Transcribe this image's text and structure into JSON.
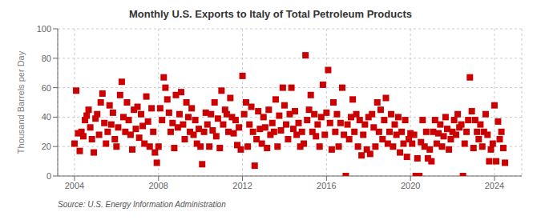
{
  "chart_data": {
    "type": "scatter",
    "title": "Monthly U.S. Exports to Italy of Total Petroleum Products",
    "y_label": "Thousand Barrels per Day",
    "annotation": "Source: U.S. Energy Information Administration",
    "color": "#cc0000",
    "marker": "square",
    "grid": true,
    "xlim": [
      2003.2,
      2025.3
    ],
    "ylim": [
      0,
      100
    ],
    "xticks": [
      2004,
      2008,
      2012,
      2016,
      2020,
      2024
    ],
    "yticks": [
      0,
      20,
      40,
      60,
      80,
      100
    ],
    "x": [
      2004.0,
      2004.08,
      2004.17,
      2004.25,
      2004.33,
      2004.42,
      2004.5,
      2004.58,
      2004.67,
      2004.75,
      2004.83,
      2004.92,
      2005.0,
      2005.08,
      2005.17,
      2005.25,
      2005.33,
      2005.42,
      2005.5,
      2005.58,
      2005.67,
      2005.75,
      2005.83,
      2005.92,
      2006.0,
      2006.08,
      2006.17,
      2006.25,
      2006.33,
      2006.42,
      2006.5,
      2006.58,
      2006.67,
      2006.75,
      2006.83,
      2006.92,
      2007.0,
      2007.08,
      2007.17,
      2007.25,
      2007.33,
      2007.42,
      2007.5,
      2007.58,
      2007.67,
      2007.75,
      2007.83,
      2007.92,
      2008.0,
      2008.08,
      2008.17,
      2008.25,
      2008.33,
      2008.42,
      2008.5,
      2008.58,
      2008.67,
      2008.75,
      2008.83,
      2008.92,
      2009.0,
      2009.08,
      2009.17,
      2009.25,
      2009.33,
      2009.42,
      2009.5,
      2009.58,
      2009.67,
      2009.75,
      2009.83,
      2009.92,
      2010.0,
      2010.08,
      2010.17,
      2010.25,
      2010.33,
      2010.42,
      2010.5,
      2010.58,
      2010.67,
      2010.75,
      2010.83,
      2010.92,
      2011.0,
      2011.08,
      2011.17,
      2011.25,
      2011.33,
      2011.42,
      2011.5,
      2011.58,
      2011.67,
      2011.75,
      2011.83,
      2011.92,
      2012.0,
      2012.08,
      2012.17,
      2012.25,
      2012.33,
      2012.42,
      2012.5,
      2012.58,
      2012.67,
      2012.75,
      2012.83,
      2012.92,
      2013.0,
      2013.08,
      2013.17,
      2013.25,
      2013.33,
      2013.42,
      2013.5,
      2013.58,
      2013.67,
      2013.75,
      2013.83,
      2013.92,
      2014.0,
      2014.08,
      2014.17,
      2014.25,
      2014.33,
      2014.42,
      2014.5,
      2014.58,
      2014.67,
      2014.75,
      2014.83,
      2014.92,
      2015.0,
      2015.08,
      2015.17,
      2015.25,
      2015.33,
      2015.42,
      2015.5,
      2015.58,
      2015.67,
      2015.75,
      2015.83,
      2015.92,
      2016.0,
      2016.08,
      2016.17,
      2016.25,
      2016.33,
      2016.42,
      2016.5,
      2016.58,
      2016.67,
      2016.75,
      2016.83,
      2016.92,
      2017.0,
      2017.08,
      2017.17,
      2017.25,
      2017.33,
      2017.42,
      2017.5,
      2017.58,
      2017.67,
      2017.75,
      2017.83,
      2017.92,
      2018.0,
      2018.08,
      2018.17,
      2018.25,
      2018.33,
      2018.42,
      2018.5,
      2018.58,
      2018.67,
      2018.75,
      2018.83,
      2018.92,
      2019.0,
      2019.08,
      2019.17,
      2019.25,
      2019.33,
      2019.42,
      2019.5,
      2019.58,
      2019.67,
      2019.75,
      2019.83,
      2019.92,
      2020.0,
      2020.08,
      2020.17,
      2020.25,
      2020.33,
      2020.42,
      2020.5,
      2020.58,
      2020.67,
      2020.75,
      2020.83,
      2020.92,
      2021.0,
      2021.08,
      2021.17,
      2021.25,
      2021.33,
      2021.42,
      2021.5,
      2021.58,
      2021.67,
      2021.75,
      2021.83,
      2021.92,
      2022.0,
      2022.08,
      2022.17,
      2022.25,
      2022.33,
      2022.42,
      2022.5,
      2022.58,
      2022.67,
      2022.75,
      2022.83,
      2022.92,
      2023.0,
      2023.08,
      2023.17,
      2023.25,
      2023.33,
      2023.42,
      2023.5,
      2023.58,
      2023.67,
      2023.75,
      2023.83,
      2023.92,
      2024.0,
      2024.08,
      2024.17,
      2024.25,
      2024.33,
      2024.42,
      2024.5
    ],
    "values": [
      22,
      58,
      29,
      17,
      30,
      27,
      38,
      41,
      45,
      33,
      25,
      16,
      39,
      42,
      28,
      50,
      56,
      36,
      22,
      30,
      48,
      35,
      43,
      25,
      20,
      33,
      55,
      64,
      40,
      30,
      50,
      38,
      28,
      18,
      45,
      32,
      47,
      26,
      42,
      34,
      22,
      54,
      37,
      20,
      46,
      30,
      16,
      9,
      20,
      46,
      38,
      67,
      60,
      52,
      43,
      30,
      36,
      19,
      55,
      33,
      42,
      57,
      35,
      25,
      50,
      40,
      30,
      46,
      28,
      38,
      22,
      32,
      20,
      8,
      30,
      43,
      35,
      20,
      42,
      31,
      50,
      27,
      39,
      19,
      58,
      35,
      45,
      42,
      30,
      53,
      40,
      29,
      38,
      21,
      33,
      18,
      68,
      42,
      50,
      20,
      35,
      47,
      30,
      7,
      25,
      44,
      32,
      22,
      40,
      33,
      19,
      45,
      28,
      36,
      30,
      52,
      20,
      41,
      31,
      60,
      48,
      35,
      25,
      42,
      60,
      32,
      44,
      28,
      36,
      20,
      30,
      22,
      82,
      38,
      45,
      55,
      30,
      42,
      27,
      35,
      20,
      40,
      62,
      28,
      43,
      72,
      36,
      18,
      50,
      30,
      42,
      20,
      36,
      60,
      28,
      0,
      35,
      25,
      40,
      52,
      30,
      42,
      20,
      38,
      14,
      28,
      35,
      18,
      40,
      15,
      42,
      33,
      20,
      50,
      30,
      45,
      25,
      38,
      53,
      22,
      30,
      42,
      20,
      35,
      28,
      40,
      16,
      30,
      22,
      38,
      13,
      25,
      29,
      22,
      28,
      0,
      12,
      0,
      23,
      38,
      20,
      30,
      12,
      18,
      10,
      30,
      38,
      22,
      29,
      35,
      20,
      27,
      40,
      32,
      18,
      25,
      30,
      38,
      28,
      42,
      33,
      35,
      0,
      22,
      30,
      38,
      67,
      44,
      19,
      38,
      30,
      25,
      35,
      20,
      30,
      42,
      28,
      10,
      18,
      22,
      48,
      10,
      37,
      25,
      30,
      19,
      9
    ]
  }
}
